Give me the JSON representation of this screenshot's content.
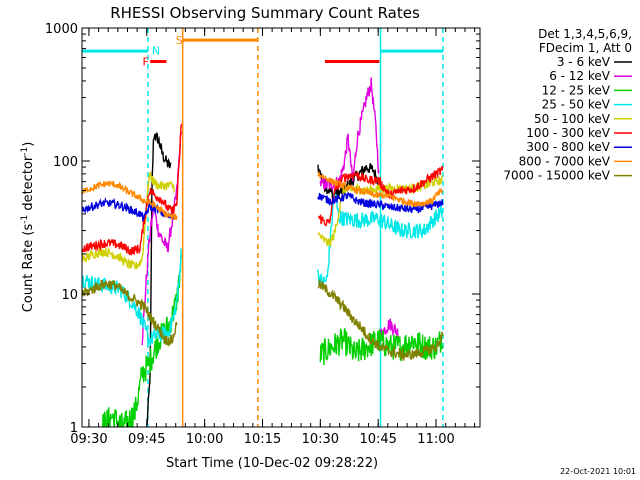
{
  "chart_data": {
    "type": "line",
    "title": "RHESSI Observing Summary Count Rates",
    "xlabel": "Start Time (10-Dec-02 09:28:22)",
    "ylabel": "Count Rate (s⁻¹ detector⁻¹)",
    "ylabel_parts": [
      "Count Rate (s",
      "-1",
      " detector",
      "-1",
      ")"
    ],
    "footer": "22-Oct-2021 10:01",
    "yscale": "log",
    "xlim": [
      9.47,
      11.19
    ],
    "ylim": [
      1,
      1000
    ],
    "x_ticks": [
      {
        "value": 9.5,
        "label": "09:30"
      },
      {
        "value": 9.75,
        "label": "09:45"
      },
      {
        "value": 10.0,
        "label": "10:00"
      },
      {
        "value": 10.25,
        "label": "10:15"
      },
      {
        "value": 10.5,
        "label": "10:30"
      },
      {
        "value": 10.75,
        "label": "10:45"
      },
      {
        "value": 11.0,
        "label": "11:00"
      }
    ],
    "y_ticks": [
      {
        "value": 1,
        "label": "1"
      },
      {
        "value": 10,
        "label": "10"
      },
      {
        "value": 100,
        "label": "100"
      },
      {
        "value": 1000,
        "label": "1000"
      }
    ],
    "legend_header": [
      "Det 1,3,4,5,6,9,",
      "FDecim 1, Att 0"
    ],
    "series": [
      {
        "name": "3 - 6 keV",
        "color": "#000000",
        "noise": 0.045,
        "segments": [
          [
            [
              9.75,
              1.0
            ],
            [
              9.757,
              1.5
            ],
            [
              9.765,
              2.5
            ],
            [
              9.772,
              60
            ],
            [
              9.78,
              160
            ],
            [
              9.8,
              145
            ],
            [
              9.82,
              110
            ],
            [
              9.84,
              95
            ],
            [
              9.855,
              90
            ]
          ],
          [
            [
              10.49,
              90
            ],
            [
              10.52,
              65
            ],
            [
              10.56,
              55
            ],
            [
              10.6,
              60
            ],
            [
              10.65,
              75
            ],
            [
              10.7,
              90
            ],
            [
              10.73,
              85
            ],
            [
              10.75,
              70
            ]
          ]
        ]
      },
      {
        "name": "6 - 12 keV",
        "color": "#e000e0",
        "noise": 0.05,
        "segments": [
          [
            [
              9.73,
              4.5
            ],
            [
              9.76,
              25
            ],
            [
              9.78,
              45
            ],
            [
              9.8,
              30
            ],
            [
              9.82,
              25
            ],
            [
              9.84,
              22
            ],
            [
              9.86,
              35
            ],
            [
              9.88,
              60
            ],
            [
              9.9,
              180
            ]
          ],
          [
            [
              10.5,
              68
            ],
            [
              10.54,
              66
            ],
            [
              10.58,
              70
            ],
            [
              10.6,
              90
            ],
            [
              10.62,
              150
            ],
            [
              10.64,
              70
            ],
            [
              10.66,
              150
            ],
            [
              10.7,
              300
            ],
            [
              10.72,
              380
            ],
            [
              10.74,
              180
            ],
            [
              10.755,
              70
            ]
          ],
          [
            [
              10.76,
              5
            ],
            [
              10.8,
              6
            ],
            [
              10.84,
              5
            ]
          ]
        ]
      },
      {
        "name": "12 - 25 keV",
        "color": "#00d000",
        "noise": 0.1,
        "segments": [
          [
            [
              9.55,
              1.0
            ],
            [
              9.6,
              1.2
            ],
            [
              9.65,
              1.0
            ],
            [
              9.7,
              1.3
            ],
            [
              9.73,
              2.5
            ],
            [
              9.76,
              3.0
            ],
            [
              9.8,
              4.5
            ],
            [
              9.85,
              6.0
            ],
            [
              9.88,
              9.0
            ],
            [
              9.9,
              18
            ]
          ],
          [
            [
              10.5,
              3.5
            ],
            [
              10.55,
              4.0
            ],
            [
              10.6,
              4.5
            ],
            [
              10.65,
              3.5
            ],
            [
              10.7,
              4.0
            ],
            [
              10.75,
              4.5
            ],
            [
              10.8,
              4.0
            ],
            [
              10.85,
              4.0
            ],
            [
              10.9,
              4.5
            ],
            [
              10.95,
              4.0
            ],
            [
              11.0,
              4.0
            ],
            [
              11.02,
              4.5
            ],
            [
              11.03,
              5.0
            ]
          ]
        ]
      },
      {
        "name": "25 - 50 keV",
        "color": "#00e8e8",
        "noise": 0.06,
        "segments": [
          [
            [
              9.47,
              13
            ],
            [
              9.52,
              12
            ],
            [
              9.58,
              11.5
            ],
            [
              9.63,
              11
            ],
            [
              9.68,
              9
            ],
            [
              9.72,
              7
            ],
            [
              9.74,
              5.5
            ],
            [
              9.76,
              4.5
            ],
            [
              9.8,
              5
            ],
            [
              9.84,
              5
            ],
            [
              9.87,
              7
            ],
            [
              9.89,
              12
            ],
            [
              9.9,
              25
            ]
          ],
          [
            [
              10.49,
              14
            ],
            [
              10.51,
              12
            ],
            [
              10.53,
              13
            ],
            [
              10.56,
              60
            ],
            [
              10.58,
              38
            ],
            [
              10.6,
              37
            ],
            [
              10.65,
              36
            ],
            [
              10.7,
              36
            ],
            [
              10.75,
              37
            ],
            [
              10.8,
              33
            ],
            [
              10.85,
              30
            ],
            [
              10.9,
              30
            ],
            [
              10.95,
              30
            ],
            [
              10.98,
              35
            ],
            [
              11.0,
              38
            ],
            [
              11.03,
              42
            ]
          ]
        ]
      },
      {
        "name": "50 - 100 keV",
        "color": "#d0d000",
        "noise": 0.035,
        "segments": [
          [
            [
              9.47,
              18
            ],
            [
              9.52,
              20
            ],
            [
              9.56,
              21
            ],
            [
              9.6,
              20
            ],
            [
              9.63,
              19
            ],
            [
              9.66,
              17
            ],
            [
              9.7,
              16
            ],
            [
              9.73,
              18
            ],
            [
              9.76,
              80
            ],
            [
              9.78,
              70
            ],
            [
              9.8,
              65
            ],
            [
              9.82,
              65
            ],
            [
              9.85,
              66
            ],
            [
              9.87,
              64
            ]
          ],
          [
            [
              10.49,
              28
            ],
            [
              10.52,
              25
            ],
            [
              10.54,
              24
            ],
            [
              10.56,
              28
            ],
            [
              10.6,
              60
            ],
            [
              10.65,
              62
            ],
            [
              10.7,
              60
            ],
            [
              10.75,
              62
            ],
            [
              10.8,
              62
            ],
            [
              10.85,
              62
            ],
            [
              10.9,
              62
            ],
            [
              10.95,
              65
            ],
            [
              11.0,
              70
            ],
            [
              11.03,
              72
            ]
          ]
        ]
      },
      {
        "name": "100 - 300 keV",
        "color": "#ff0000",
        "noise": 0.035,
        "segments": [
          [
            [
              9.47,
              22
            ],
            [
              9.52,
              23
            ],
            [
              9.56,
              24
            ],
            [
              9.6,
              24
            ],
            [
              9.64,
              23
            ],
            [
              9.68,
              21
            ],
            [
              9.72,
              22
            ],
            [
              9.76,
              60
            ],
            [
              9.79,
              55
            ],
            [
              9.82,
              50
            ],
            [
              9.84,
              44
            ],
            [
              9.86,
              42
            ],
            [
              9.88,
              48
            ],
            [
              9.9,
              200
            ]
          ],
          [
            [
              10.49,
              38
            ],
            [
              10.52,
              35
            ],
            [
              10.54,
              34
            ],
            [
              10.56,
              60
            ],
            [
              10.6,
              75
            ],
            [
              10.65,
              80
            ],
            [
              10.7,
              72
            ],
            [
              10.75,
              72
            ],
            [
              10.8,
              55
            ],
            [
              10.85,
              60
            ],
            [
              10.9,
              62
            ],
            [
              10.95,
              70
            ],
            [
              11.0,
              80
            ],
            [
              11.03,
              85
            ]
          ]
        ]
      },
      {
        "name": "300 - 800 keV",
        "color": "#0000e0",
        "noise": 0.03,
        "segments": [
          [
            [
              9.47,
              43
            ],
            [
              9.52,
              46
            ],
            [
              9.56,
              48
            ],
            [
              9.6,
              48
            ],
            [
              9.64,
              46
            ],
            [
              9.68,
              43
            ],
            [
              9.72,
              40
            ],
            [
              9.74,
              37
            ],
            [
              9.76,
              45
            ],
            [
              9.79,
              44
            ],
            [
              9.82,
              40
            ],
            [
              9.85,
              38
            ],
            [
              9.87,
              39
            ]
          ],
          [
            [
              10.49,
              55
            ],
            [
              10.52,
              52
            ],
            [
              10.55,
              50
            ],
            [
              10.58,
              52
            ],
            [
              10.62,
              55
            ],
            [
              10.66,
              50
            ],
            [
              10.7,
              48
            ],
            [
              10.75,
              47
            ],
            [
              10.8,
              45
            ],
            [
              10.85,
              44
            ],
            [
              10.9,
              43
            ],
            [
              10.95,
              44
            ],
            [
              11.0,
              47
            ],
            [
              11.03,
              49
            ]
          ]
        ]
      },
      {
        "name": "800 - 7000 keV",
        "color": "#ff8800",
        "noise": 0.025,
        "segments": [
          [
            [
              9.47,
              58
            ],
            [
              9.5,
              62
            ],
            [
              9.54,
              65
            ],
            [
              9.58,
              68
            ],
            [
              9.62,
              66
            ],
            [
              9.66,
              60
            ],
            [
              9.7,
              55
            ],
            [
              9.74,
              50
            ],
            [
              9.77,
              48
            ],
            [
              9.8,
              44
            ],
            [
              9.83,
              40
            ],
            [
              9.86,
              38
            ],
            [
              9.88,
              38
            ]
          ],
          [
            [
              10.49,
              80
            ],
            [
              10.52,
              75
            ],
            [
              10.55,
              70
            ],
            [
              10.58,
              67
            ],
            [
              10.62,
              63
            ],
            [
              10.66,
              60
            ],
            [
              10.7,
              58
            ],
            [
              10.74,
              55
            ],
            [
              10.78,
              55
            ],
            [
              10.82,
              53
            ],
            [
              10.86,
              50
            ],
            [
              10.9,
              48
            ],
            [
              10.94,
              48
            ],
            [
              10.98,
              50
            ],
            [
              11.0,
              55
            ],
            [
              11.03,
              60
            ]
          ]
        ]
      },
      {
        "name": "7000 - 15000 keV",
        "color": "#808000",
        "noise": 0.04,
        "segments": [
          [
            [
              9.47,
              10
            ],
            [
              9.5,
              10.5
            ],
            [
              9.54,
              11.5
            ],
            [
              9.58,
              12
            ],
            [
              9.62,
              11.5
            ],
            [
              9.66,
              10
            ],
            [
              9.7,
              9
            ],
            [
              9.74,
              8
            ],
            [
              9.77,
              6.5
            ],
            [
              9.8,
              5.5
            ],
            [
              9.83,
              4.5
            ],
            [
              9.86,
              4.5
            ],
            [
              9.88,
              6
            ]
          ],
          [
            [
              10.49,
              12
            ],
            [
              10.52,
              11
            ],
            [
              10.56,
              9.5
            ],
            [
              10.6,
              8
            ],
            [
              10.64,
              6.5
            ],
            [
              10.68,
              5.5
            ],
            [
              10.72,
              4.5
            ],
            [
              10.76,
              4.0
            ],
            [
              10.8,
              3.7
            ],
            [
              10.85,
              3.5
            ],
            [
              10.9,
              3.5
            ],
            [
              10.95,
              3.7
            ],
            [
              11.0,
              4.0
            ],
            [
              11.03,
              5.0
            ]
          ]
        ]
      }
    ],
    "annotations": [
      {
        "kind": "hline",
        "color": "#00e8e8",
        "x0": 9.47,
        "x1": 9.755,
        "y": 670
      },
      {
        "kind": "hline",
        "color": "#00e8e8",
        "x0": 10.76,
        "x1": 11.03,
        "y": 670
      },
      {
        "kind": "vline",
        "color": "#00e8e8",
        "x": 9.755,
        "style": "dashed"
      },
      {
        "kind": "vline",
        "color": "#00e8e8",
        "x": 10.76,
        "style": "solid"
      },
      {
        "kind": "vline",
        "color": "#00e8e8",
        "x": 11.03,
        "style": "dashed"
      },
      {
        "kind": "hline",
        "color": "#ff0000",
        "x0": 9.765,
        "x1": 9.835,
        "y": 560
      },
      {
        "kind": "hline",
        "color": "#ff0000",
        "x0": 10.52,
        "x1": 10.755,
        "y": 560
      },
      {
        "kind": "hline",
        "color": "#ff8800",
        "x0": 9.905,
        "x1": 10.23,
        "y": 810
      },
      {
        "kind": "vline",
        "color": "#ff8800",
        "x": 9.905,
        "style": "solid"
      },
      {
        "kind": "vline",
        "color": "#ff8800",
        "x": 10.23,
        "style": "dashed"
      },
      {
        "kind": "label",
        "color": "#ff0000",
        "text": "F",
        "x": 9.745,
        "y": 560
      },
      {
        "kind": "label",
        "color": "#00e8e8",
        "text": "N",
        "x": 9.79,
        "y": 680
      },
      {
        "kind": "label",
        "color": "#ff8800",
        "text": "S",
        "x": 9.89,
        "y": 810
      }
    ]
  }
}
